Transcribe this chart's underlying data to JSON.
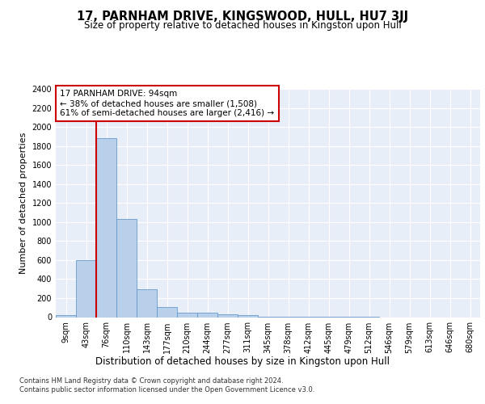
{
  "title": "17, PARNHAM DRIVE, KINGSWOOD, HULL, HU7 3JJ",
  "subtitle": "Size of property relative to detached houses in Kingston upon Hull",
  "xlabel_bottom": "Distribution of detached houses by size in Kingston upon Hull",
  "ylabel": "Number of detached properties",
  "footnote": "Contains HM Land Registry data © Crown copyright and database right 2024.\nContains public sector information licensed under the Open Government Licence v3.0.",
  "bin_labels": [
    "9sqm",
    "43sqm",
    "76sqm",
    "110sqm",
    "143sqm",
    "177sqm",
    "210sqm",
    "244sqm",
    "277sqm",
    "311sqm",
    "345sqm",
    "378sqm",
    "412sqm",
    "445sqm",
    "479sqm",
    "512sqm",
    "546sqm",
    "579sqm",
    "613sqm",
    "646sqm",
    "680sqm"
  ],
  "bar_values": [
    20,
    600,
    1880,
    1030,
    290,
    110,
    50,
    45,
    30,
    20,
    8,
    5,
    3,
    2,
    1,
    1,
    0,
    0,
    0,
    0,
    0
  ],
  "bar_color": "#b8d0ea",
  "bar_edge_color": "#6699cc",
  "property_bin_index": 2,
  "vline_color": "#cc0000",
  "annotation_text": "17 PARNHAM DRIVE: 94sqm\n← 38% of detached houses are smaller (1,508)\n61% of semi-detached houses are larger (2,416) →",
  "annotation_box_color": "#cc0000",
  "ylim": [
    0,
    2400
  ],
  "yticks": [
    0,
    200,
    400,
    600,
    800,
    1000,
    1200,
    1400,
    1600,
    1800,
    2000,
    2200,
    2400
  ],
  "background_color": "#e8eef8",
  "grid_color": "#ffffff",
  "title_fontsize": 10.5,
  "subtitle_fontsize": 8.5,
  "ylabel_fontsize": 8,
  "xlabel_fontsize": 8.5,
  "tick_fontsize": 7,
  "annotation_fontsize": 7.5,
  "footnote_fontsize": 6
}
